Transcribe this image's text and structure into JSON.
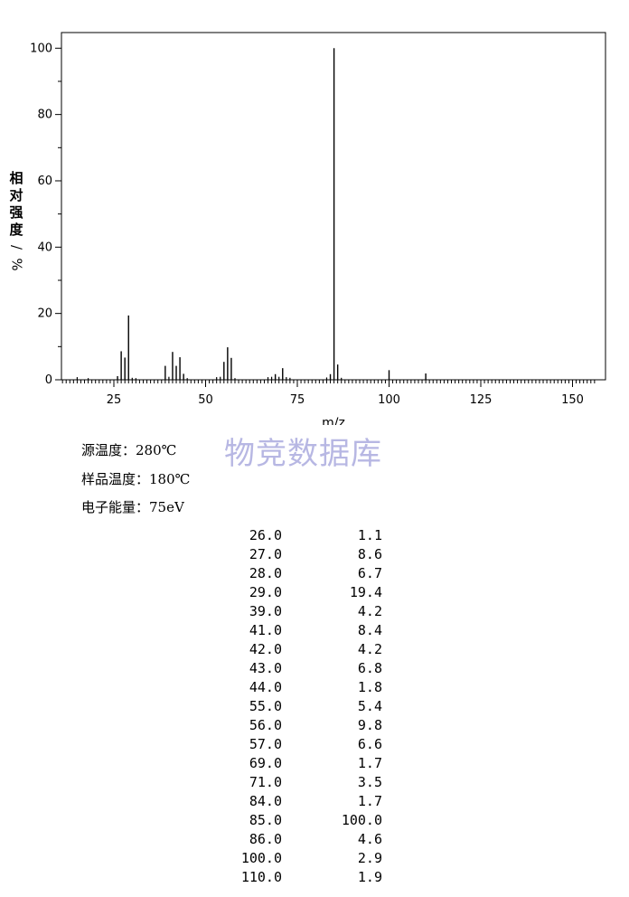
{
  "chart_data": {
    "type": "bar",
    "subtype": "mass-spectrum",
    "xlabel": "m/z",
    "ylabel": "相对强度/%",
    "xlim": [
      9,
      156
    ],
    "ylim": [
      0,
      105
    ],
    "x_ticks": [
      25,
      50,
      75,
      100,
      125,
      150
    ],
    "y_ticks": [
      0,
      20,
      40,
      60,
      80,
      100
    ],
    "grid": false,
    "peaks": [
      {
        "mz": 26.0,
        "intensity": 1.1
      },
      {
        "mz": 27.0,
        "intensity": 8.6
      },
      {
        "mz": 28.0,
        "intensity": 6.7
      },
      {
        "mz": 29.0,
        "intensity": 19.4
      },
      {
        "mz": 39.0,
        "intensity": 4.2
      },
      {
        "mz": 41.0,
        "intensity": 8.4
      },
      {
        "mz": 42.0,
        "intensity": 4.2
      },
      {
        "mz": 43.0,
        "intensity": 6.8
      },
      {
        "mz": 44.0,
        "intensity": 1.8
      },
      {
        "mz": 55.0,
        "intensity": 5.4
      },
      {
        "mz": 56.0,
        "intensity": 9.8
      },
      {
        "mz": 57.0,
        "intensity": 6.6
      },
      {
        "mz": 69.0,
        "intensity": 1.7
      },
      {
        "mz": 71.0,
        "intensity": 3.5
      },
      {
        "mz": 84.0,
        "intensity": 1.7
      },
      {
        "mz": 85.0,
        "intensity": 100.0
      },
      {
        "mz": 86.0,
        "intensity": 4.6
      },
      {
        "mz": 100.0,
        "intensity": 2.9
      },
      {
        "mz": 110.0,
        "intensity": 1.9
      }
    ],
    "minor_peaks": [
      {
        "mz": 15,
        "intensity": 0.8
      },
      {
        "mz": 18,
        "intensity": 0.5
      },
      {
        "mz": 30,
        "intensity": 0.6
      },
      {
        "mz": 31,
        "intensity": 0.5
      },
      {
        "mz": 40,
        "intensity": 0.9
      },
      {
        "mz": 45,
        "intensity": 0.5
      },
      {
        "mz": 53,
        "intensity": 0.8
      },
      {
        "mz": 54,
        "intensity": 0.9
      },
      {
        "mz": 58,
        "intensity": 0.5
      },
      {
        "mz": 67,
        "intensity": 0.8
      },
      {
        "mz": 68,
        "intensity": 0.9
      },
      {
        "mz": 70,
        "intensity": 0.9
      },
      {
        "mz": 72,
        "intensity": 0.8
      },
      {
        "mz": 73,
        "intensity": 0.6
      },
      {
        "mz": 83,
        "intensity": 0.7
      },
      {
        "mz": 87,
        "intensity": 0.6
      }
    ]
  },
  "watermark": "物竞数据库",
  "conditions": [
    "源温度：280℃",
    "样品温度：180℃",
    "电子能量：75eV"
  ],
  "peak_table": [
    {
      "mz": "26.0",
      "intensity": "1.1"
    },
    {
      "mz": "27.0",
      "intensity": "8.6"
    },
    {
      "mz": "28.0",
      "intensity": "6.7"
    },
    {
      "mz": "29.0",
      "intensity": "19.4"
    },
    {
      "mz": "39.0",
      "intensity": "4.2"
    },
    {
      "mz": "41.0",
      "intensity": "8.4"
    },
    {
      "mz": "42.0",
      "intensity": "4.2"
    },
    {
      "mz": "43.0",
      "intensity": "6.8"
    },
    {
      "mz": "44.0",
      "intensity": "1.8"
    },
    {
      "mz": "55.0",
      "intensity": "5.4"
    },
    {
      "mz": "56.0",
      "intensity": "9.8"
    },
    {
      "mz": "57.0",
      "intensity": "6.6"
    },
    {
      "mz": "69.0",
      "intensity": "1.7"
    },
    {
      "mz": "71.0",
      "intensity": "3.5"
    },
    {
      "mz": "84.0",
      "intensity": "1.7"
    },
    {
      "mz": "85.0",
      "intensity": "100.0"
    },
    {
      "mz": "86.0",
      "intensity": "4.6"
    },
    {
      "mz": "100.0",
      "intensity": "2.9"
    },
    {
      "mz": "110.0",
      "intensity": "1.9"
    }
  ]
}
